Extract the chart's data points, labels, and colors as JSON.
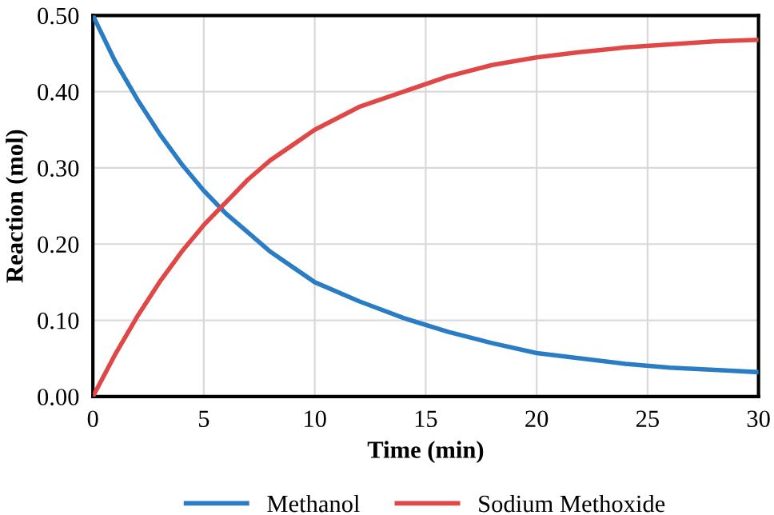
{
  "chart_data": {
    "type": "line",
    "xlabel": "Time (min)",
    "ylabel": "Reaction (mol)",
    "x": [
      0,
      1,
      2,
      3,
      4,
      5,
      6,
      7,
      8,
      9,
      10,
      12,
      14,
      16,
      18,
      20,
      22,
      24,
      26,
      28,
      30
    ],
    "series": [
      {
        "name": "Methanol",
        "color": "#2a7dc4",
        "values": [
          0.5,
          0.44,
          0.39,
          0.345,
          0.305,
          0.27,
          0.24,
          0.215,
          0.19,
          0.17,
          0.15,
          0.125,
          0.103,
          0.085,
          0.07,
          0.057,
          0.05,
          0.043,
          0.038,
          0.035,
          0.032
        ]
      },
      {
        "name": "Sodium Methoxide",
        "color": "#e04848",
        "values": [
          0.0,
          0.055,
          0.105,
          0.15,
          0.19,
          0.225,
          0.255,
          0.285,
          0.31,
          0.33,
          0.35,
          0.38,
          0.4,
          0.42,
          0.435,
          0.445,
          0.452,
          0.458,
          0.462,
          0.466,
          0.468
        ]
      }
    ],
    "xlim": [
      0,
      30
    ],
    "xticks": [
      0,
      5,
      10,
      15,
      20,
      25,
      30
    ],
    "ylim": [
      0,
      0.5
    ],
    "yticks": [
      {
        "value": 0,
        "label": "0.00"
      },
      {
        "value": 0.1,
        "label": "0.10"
      },
      {
        "value": 0.2,
        "label": "0.20"
      },
      {
        "value": 0.3,
        "label": "0.30"
      },
      {
        "value": 0.4,
        "label": "0.40"
      },
      {
        "value": 0.5,
        "label": "0.50"
      }
    ],
    "grid": true,
    "legend": "bottom",
    "marker": "none",
    "line_style": "solid"
  }
}
